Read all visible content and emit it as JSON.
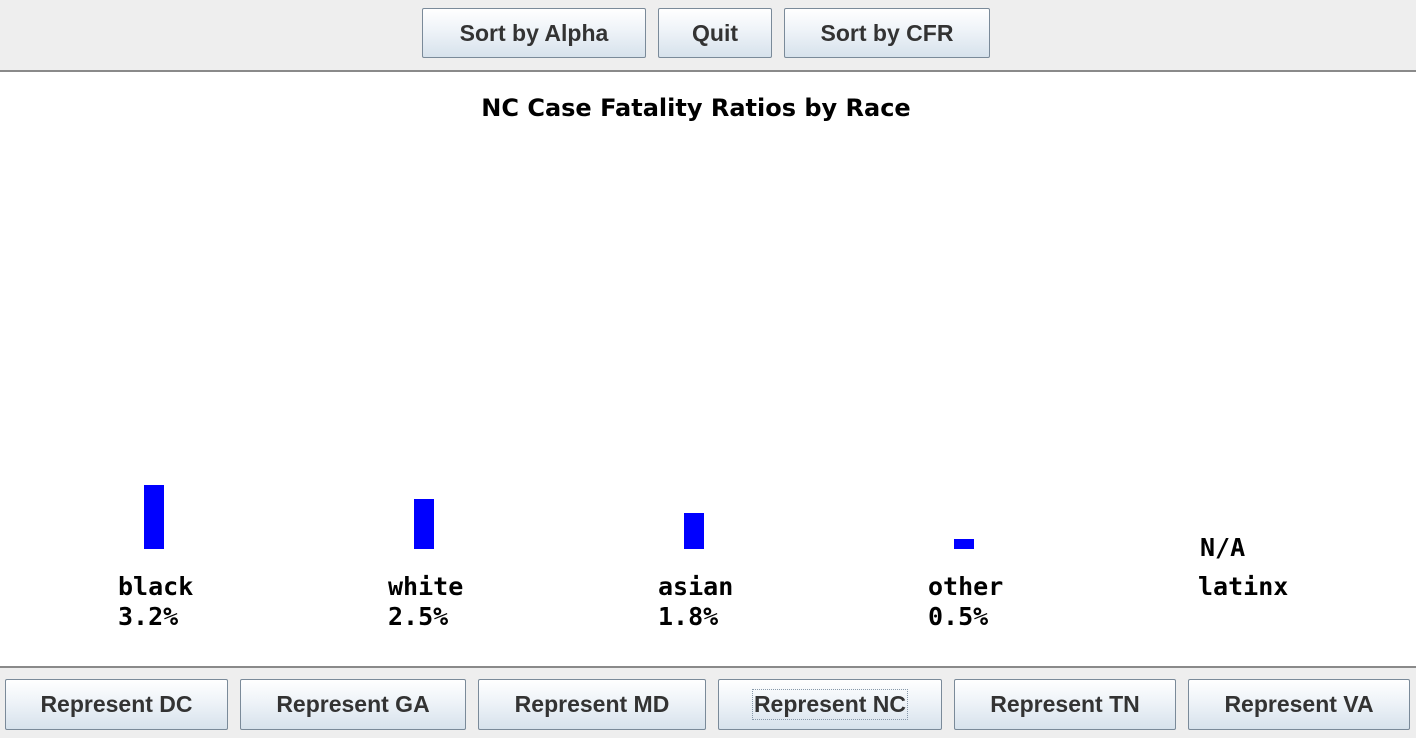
{
  "toolbar": {
    "sort_alpha_label": "Sort by Alpha",
    "quit_label": "Quit",
    "sort_cfr_label": "Sort by CFR"
  },
  "state_buttons": [
    {
      "label": "Represent DC"
    },
    {
      "label": "Represent GA"
    },
    {
      "label": "Represent MD"
    },
    {
      "label": "Represent NC",
      "focused": true
    },
    {
      "label": "Represent TN"
    },
    {
      "label": "Represent VA"
    }
  ],
  "chart_data": {
    "type": "bar",
    "title": "NC Case Fatality Ratios by Race",
    "categories": [
      "black",
      "white",
      "asian",
      "other",
      "latinx"
    ],
    "values": [
      3.2,
      2.5,
      1.8,
      0.5,
      null
    ],
    "value_labels": [
      "3.2%",
      "2.5%",
      "1.8%",
      "0.5%",
      ""
    ],
    "missing_label": "N/A",
    "bar_color": "#0000ff",
    "xlabel": "",
    "ylabel": ""
  }
}
